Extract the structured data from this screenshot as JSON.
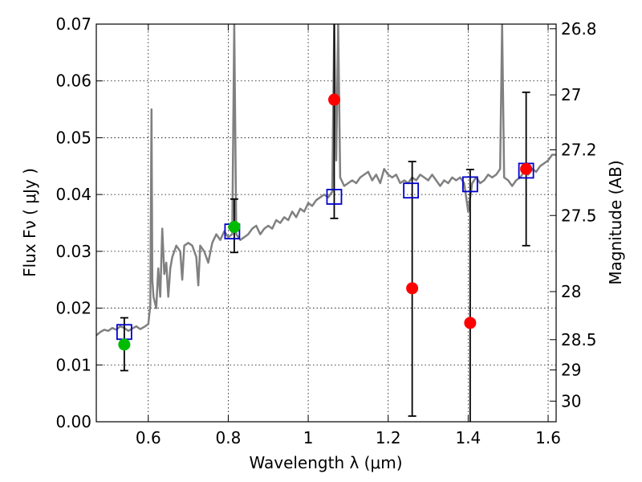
{
  "chart_data": {
    "type": "scatter",
    "xlabel": "Wavelength  λ (μm)",
    "ylabel": "Flux  Fν  ( μJy )",
    "y2label": "Magnitude (AB)",
    "xlim": [
      0.47,
      1.62
    ],
    "ylim": [
      0.0,
      0.07
    ],
    "grid": true,
    "x_ticks": [
      0.6,
      0.8,
      1.0,
      1.2,
      1.4,
      1.6
    ],
    "x_tick_labels": [
      "0.6",
      "0.8",
      "1",
      "1.2",
      "1.4",
      "1.6"
    ],
    "y_ticks": [
      0.0,
      0.01,
      0.02,
      0.03,
      0.04,
      0.05,
      0.06,
      0.07
    ],
    "y_tick_labels": [
      "0.00",
      "0.01",
      "0.02",
      "0.03",
      "0.04",
      "0.05",
      "0.06",
      "0.07"
    ],
    "y2_ticks": [
      {
        "mag": 26.8,
        "label": "26.8"
      },
      {
        "mag": 27.0,
        "label": "27"
      },
      {
        "mag": 27.2,
        "label": "27.2"
      },
      {
        "mag": 27.5,
        "label": "27.5"
      },
      {
        "mag": 28.0,
        "label": "28"
      },
      {
        "mag": 28.5,
        "label": "28.5"
      },
      {
        "mag": 29.0,
        "label": "29"
      },
      {
        "mag": 30.0,
        "label": "30"
      }
    ],
    "spectrum": {
      "color": "#808080",
      "points": [
        [
          0.47,
          0.0152
        ],
        [
          0.48,
          0.0158
        ],
        [
          0.49,
          0.0162
        ],
        [
          0.5,
          0.016
        ],
        [
          0.51,
          0.0165
        ],
        [
          0.52,
          0.0162
        ],
        [
          0.53,
          0.0168
        ],
        [
          0.54,
          0.0165
        ],
        [
          0.55,
          0.016
        ],
        [
          0.56,
          0.0164
        ],
        [
          0.57,
          0.0168
        ],
        [
          0.58,
          0.0163
        ],
        [
          0.59,
          0.0167
        ],
        [
          0.6,
          0.0172
        ],
        [
          0.605,
          0.0205
        ],
        [
          0.608,
          0.055
        ],
        [
          0.61,
          0.025
        ],
        [
          0.613,
          0.022
        ],
        [
          0.62,
          0.02
        ],
        [
          0.625,
          0.027
        ],
        [
          0.63,
          0.022
        ],
        [
          0.635,
          0.034
        ],
        [
          0.64,
          0.026
        ],
        [
          0.645,
          0.028
        ],
        [
          0.65,
          0.022
        ],
        [
          0.655,
          0.027
        ],
        [
          0.66,
          0.029
        ],
        [
          0.67,
          0.031
        ],
        [
          0.68,
          0.03
        ],
        [
          0.685,
          0.025
        ],
        [
          0.69,
          0.031
        ],
        [
          0.7,
          0.0315
        ],
        [
          0.71,
          0.031
        ],
        [
          0.72,
          0.029
        ],
        [
          0.725,
          0.024
        ],
        [
          0.73,
          0.031
        ],
        [
          0.74,
          0.03
        ],
        [
          0.75,
          0.028
        ],
        [
          0.76,
          0.0315
        ],
        [
          0.77,
          0.033
        ],
        [
          0.78,
          0.032
        ],
        [
          0.79,
          0.0335
        ],
        [
          0.8,
          0.0325
        ],
        [
          0.81,
          0.033
        ],
        [
          0.815,
          0.07
        ],
        [
          0.82,
          0.033
        ],
        [
          0.83,
          0.032
        ],
        [
          0.84,
          0.0325
        ],
        [
          0.85,
          0.033
        ],
        [
          0.86,
          0.034
        ],
        [
          0.87,
          0.0345
        ],
        [
          0.88,
          0.033
        ],
        [
          0.89,
          0.034
        ],
        [
          0.9,
          0.0345
        ],
        [
          0.91,
          0.034
        ],
        [
          0.92,
          0.0355
        ],
        [
          0.93,
          0.035
        ],
        [
          0.94,
          0.036
        ],
        [
          0.95,
          0.0355
        ],
        [
          0.96,
          0.037
        ],
        [
          0.97,
          0.036
        ],
        [
          0.98,
          0.0375
        ],
        [
          0.99,
          0.037
        ],
        [
          1.0,
          0.0385
        ],
        [
          1.01,
          0.038
        ],
        [
          1.02,
          0.039
        ],
        [
          1.03,
          0.0395
        ],
        [
          1.04,
          0.04
        ],
        [
          1.05,
          0.0395
        ],
        [
          1.06,
          0.0405
        ],
        [
          1.065,
          0.07
        ],
        [
          1.07,
          0.046
        ],
        [
          1.075,
          0.07
        ],
        [
          1.08,
          0.043
        ],
        [
          1.09,
          0.0415
        ],
        [
          1.1,
          0.042
        ],
        [
          1.11,
          0.0425
        ],
        [
          1.12,
          0.042
        ],
        [
          1.13,
          0.043
        ],
        [
          1.14,
          0.0435
        ],
        [
          1.15,
          0.044
        ],
        [
          1.16,
          0.0425
        ],
        [
          1.17,
          0.0435
        ],
        [
          1.18,
          0.042
        ],
        [
          1.19,
          0.0445
        ],
        [
          1.2,
          0.0435
        ],
        [
          1.21,
          0.043
        ],
        [
          1.22,
          0.0435
        ],
        [
          1.23,
          0.042
        ],
        [
          1.24,
          0.0425
        ],
        [
          1.25,
          0.042
        ],
        [
          1.26,
          0.043
        ],
        [
          1.27,
          0.0425
        ],
        [
          1.28,
          0.0435
        ],
        [
          1.29,
          0.043
        ],
        [
          1.3,
          0.0425
        ],
        [
          1.31,
          0.0435
        ],
        [
          1.32,
          0.0425
        ],
        [
          1.33,
          0.0415
        ],
        [
          1.34,
          0.0425
        ],
        [
          1.35,
          0.042
        ],
        [
          1.36,
          0.043
        ],
        [
          1.37,
          0.0425
        ],
        [
          1.38,
          0.043
        ],
        [
          1.39,
          0.042
        ],
        [
          1.4,
          0.037
        ],
        [
          1.41,
          0.042
        ],
        [
          1.42,
          0.043
        ],
        [
          1.43,
          0.042
        ],
        [
          1.44,
          0.0425
        ],
        [
          1.45,
          0.0435
        ],
        [
          1.46,
          0.043
        ],
        [
          1.47,
          0.0435
        ],
        [
          1.48,
          0.0445
        ],
        [
          1.485,
          0.07
        ],
        [
          1.49,
          0.043
        ],
        [
          1.5,
          0.0425
        ],
        [
          1.51,
          0.0415
        ],
        [
          1.52,
          0.0425
        ],
        [
          1.53,
          0.043
        ],
        [
          1.54,
          0.044
        ],
        [
          1.55,
          0.0435
        ],
        [
          1.56,
          0.0445
        ],
        [
          1.57,
          0.044
        ],
        [
          1.58,
          0.045
        ],
        [
          1.59,
          0.0455
        ],
        [
          1.6,
          0.046
        ],
        [
          1.61,
          0.047
        ],
        [
          1.62,
          0.047
        ]
      ]
    },
    "series": [
      {
        "marker": "square",
        "color": "#0000cc",
        "points": [
          [
            0.54,
            0.0158
          ],
          [
            0.81,
            0.0335
          ],
          [
            1.065,
            0.0396
          ],
          [
            1.257,
            0.0407
          ],
          [
            1.405,
            0.0418
          ],
          [
            1.545,
            0.0442
          ]
        ]
      },
      {
        "marker": "circle",
        "color": "#00bb00",
        "points": [
          [
            0.54,
            0.0136
          ],
          [
            0.815,
            0.0343
          ]
        ]
      },
      {
        "marker": "circle",
        "color": "#ff0000",
        "points": [
          [
            1.065,
            0.0567
          ],
          [
            1.26,
            0.0235
          ],
          [
            1.405,
            0.0174
          ],
          [
            1.545,
            0.0445
          ]
        ]
      }
    ],
    "errorbars": [
      {
        "x": 0.54,
        "low": 0.009,
        "high": 0.0183
      },
      {
        "x": 0.815,
        "low": 0.0298,
        "high": 0.0392
      },
      {
        "x": 1.065,
        "low": 0.0358,
        "high": 0.07
      },
      {
        "x": 1.26,
        "low": 0.001,
        "high": 0.0458
      },
      {
        "x": 1.405,
        "low": 0.0,
        "high": 0.0444
      },
      {
        "x": 1.545,
        "low": 0.031,
        "high": 0.058
      }
    ]
  }
}
